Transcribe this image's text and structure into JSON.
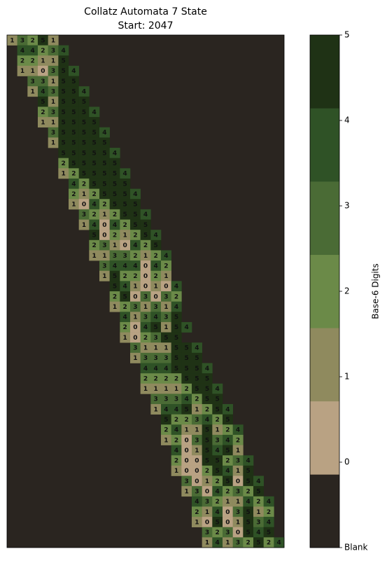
{
  "chart_data": {
    "type": "heatmap",
    "title": "Collatz Automata 7 State",
    "subtitle": "Start: 2047",
    "colors": [
      "#2a2520",
      "#b9a283",
      "#8f8a5e",
      "#6b8a48",
      "#4a6b35",
      "#2f5226",
      "#1f3215"
    ],
    "colorbar": {
      "label": "Base-6 Digits",
      "lim": [
        -1,
        5
      ],
      "ticks": [
        {
          "value": -1,
          "label": "Blank"
        },
        0,
        1,
        2,
        3,
        4,
        5
      ]
    },
    "values": [
      [
        1,
        3,
        2,
        5,
        1,
        null,
        null,
        null,
        null,
        null,
        null,
        null,
        null,
        null,
        null,
        null,
        null,
        null,
        null,
        null,
        null,
        null,
        null,
        null,
        null,
        null,
        null
      ],
      [
        null,
        4,
        4,
        2,
        3,
        4,
        null,
        null,
        null,
        null,
        null,
        null,
        null,
        null,
        null,
        null,
        null,
        null,
        null,
        null,
        null,
        null,
        null,
        null,
        null,
        null,
        null
      ],
      [
        null,
        2,
        2,
        1,
        1,
        5,
        null,
        null,
        null,
        null,
        null,
        null,
        null,
        null,
        null,
        null,
        null,
        null,
        null,
        null,
        null,
        null,
        null,
        null,
        null,
        null,
        null
      ],
      [
        null,
        1,
        1,
        0,
        3,
        5,
        4,
        null,
        null,
        null,
        null,
        null,
        null,
        null,
        null,
        null,
        null,
        null,
        null,
        null,
        null,
        null,
        null,
        null,
        null,
        null,
        null
      ],
      [
        null,
        null,
        3,
        3,
        1,
        5,
        5,
        null,
        null,
        null,
        null,
        null,
        null,
        null,
        null,
        null,
        null,
        null,
        null,
        null,
        null,
        null,
        null,
        null,
        null,
        null,
        null
      ],
      [
        null,
        null,
        1,
        4,
        3,
        5,
        5,
        4,
        null,
        null,
        null,
        null,
        null,
        null,
        null,
        null,
        null,
        null,
        null,
        null,
        null,
        null,
        null,
        null,
        null,
        null,
        null
      ],
      [
        null,
        null,
        null,
        5,
        1,
        5,
        5,
        5,
        null,
        null,
        null,
        null,
        null,
        null,
        null,
        null,
        null,
        null,
        null,
        null,
        null,
        null,
        null,
        null,
        null,
        null,
        null
      ],
      [
        null,
        null,
        null,
        2,
        3,
        5,
        5,
        5,
        4,
        null,
        null,
        null,
        null,
        null,
        null,
        null,
        null,
        null,
        null,
        null,
        null,
        null,
        null,
        null,
        null,
        null,
        null
      ],
      [
        null,
        null,
        null,
        1,
        1,
        5,
        5,
        5,
        5,
        null,
        null,
        null,
        null,
        null,
        null,
        null,
        null,
        null,
        null,
        null,
        null,
        null,
        null,
        null,
        null,
        null,
        null
      ],
      [
        null,
        null,
        null,
        null,
        3,
        5,
        5,
        5,
        5,
        4,
        null,
        null,
        null,
        null,
        null,
        null,
        null,
        null,
        null,
        null,
        null,
        null,
        null,
        null,
        null,
        null,
        null
      ],
      [
        null,
        null,
        null,
        null,
        1,
        5,
        5,
        5,
        5,
        5,
        null,
        null,
        null,
        null,
        null,
        null,
        null,
        null,
        null,
        null,
        null,
        null,
        null,
        null,
        null,
        null,
        null
      ],
      [
        null,
        null,
        null,
        null,
        null,
        5,
        5,
        5,
        5,
        5,
        4,
        null,
        null,
        null,
        null,
        null,
        null,
        null,
        null,
        null,
        null,
        null,
        null,
        null,
        null,
        null,
        null
      ],
      [
        null,
        null,
        null,
        null,
        null,
        2,
        5,
        5,
        5,
        5,
        5,
        null,
        null,
        null,
        null,
        null,
        null,
        null,
        null,
        null,
        null,
        null,
        null,
        null,
        null,
        null,
        null
      ],
      [
        null,
        null,
        null,
        null,
        null,
        1,
        2,
        5,
        5,
        5,
        5,
        4,
        null,
        null,
        null,
        null,
        null,
        null,
        null,
        null,
        null,
        null,
        null,
        null,
        null,
        null,
        null
      ],
      [
        null,
        null,
        null,
        null,
        null,
        null,
        4,
        2,
        5,
        5,
        5,
        5,
        null,
        null,
        null,
        null,
        null,
        null,
        null,
        null,
        null,
        null,
        null,
        null,
        null,
        null,
        null
      ],
      [
        null,
        null,
        null,
        null,
        null,
        null,
        2,
        1,
        2,
        5,
        5,
        5,
        4,
        null,
        null,
        null,
        null,
        null,
        null,
        null,
        null,
        null,
        null,
        null,
        null,
        null,
        null
      ],
      [
        null,
        null,
        null,
        null,
        null,
        null,
        1,
        0,
        4,
        2,
        5,
        5,
        5,
        null,
        null,
        null,
        null,
        null,
        null,
        null,
        null,
        null,
        null,
        null,
        null,
        null,
        null
      ],
      [
        null,
        null,
        null,
        null,
        null,
        null,
        null,
        3,
        2,
        1,
        2,
        5,
        5,
        4,
        null,
        null,
        null,
        null,
        null,
        null,
        null,
        null,
        null,
        null,
        null,
        null,
        null
      ],
      [
        null,
        null,
        null,
        null,
        null,
        null,
        null,
        1,
        4,
        0,
        4,
        2,
        5,
        5,
        null,
        null,
        null,
        null,
        null,
        null,
        null,
        null,
        null,
        null,
        null,
        null,
        null
      ],
      [
        null,
        null,
        null,
        null,
        null,
        null,
        null,
        null,
        5,
        0,
        2,
        1,
        2,
        5,
        4,
        null,
        null,
        null,
        null,
        null,
        null,
        null,
        null,
        null,
        null,
        null,
        null
      ],
      [
        null,
        null,
        null,
        null,
        null,
        null,
        null,
        null,
        2,
        3,
        1,
        0,
        4,
        2,
        5,
        null,
        null,
        null,
        null,
        null,
        null,
        null,
        null,
        null,
        null,
        null,
        null
      ],
      [
        null,
        null,
        null,
        null,
        null,
        null,
        null,
        null,
        1,
        1,
        3,
        3,
        2,
        1,
        2,
        4,
        null,
        null,
        null,
        null,
        null,
        null,
        null,
        null,
        null,
        null,
        null
      ],
      [
        null,
        null,
        null,
        null,
        null,
        null,
        null,
        null,
        null,
        3,
        4,
        4,
        4,
        0,
        4,
        2,
        null,
        null,
        null,
        null,
        null,
        null,
        null,
        null,
        null,
        null,
        null
      ],
      [
        null,
        null,
        null,
        null,
        null,
        null,
        null,
        null,
        null,
        1,
        5,
        2,
        2,
        0,
        2,
        1,
        null,
        null,
        null,
        null,
        null,
        null,
        null,
        null,
        null,
        null,
        null
      ],
      [
        null,
        null,
        null,
        null,
        null,
        null,
        null,
        null,
        null,
        null,
        5,
        4,
        1,
        0,
        1,
        0,
        4,
        null,
        null,
        null,
        null,
        null,
        null,
        null,
        null,
        null,
        null
      ],
      [
        null,
        null,
        null,
        null,
        null,
        null,
        null,
        null,
        null,
        null,
        2,
        5,
        0,
        3,
        0,
        3,
        2,
        null,
        null,
        null,
        null,
        null,
        null,
        null,
        null,
        null,
        null
      ],
      [
        null,
        null,
        null,
        null,
        null,
        null,
        null,
        null,
        null,
        null,
        1,
        2,
        3,
        1,
        3,
        1,
        4,
        null,
        null,
        null,
        null,
        null,
        null,
        null,
        null,
        null,
        null
      ],
      [
        null,
        null,
        null,
        null,
        null,
        null,
        null,
        null,
        null,
        null,
        null,
        4,
        1,
        3,
        4,
        3,
        5,
        null,
        null,
        null,
        null,
        null,
        null,
        null,
        null,
        null,
        null
      ],
      [
        null,
        null,
        null,
        null,
        null,
        null,
        null,
        null,
        null,
        null,
        null,
        2,
        0,
        4,
        5,
        1,
        5,
        4,
        null,
        null,
        null,
        null,
        null,
        null,
        null,
        null,
        null
      ],
      [
        null,
        null,
        null,
        null,
        null,
        null,
        null,
        null,
        null,
        null,
        null,
        1,
        0,
        2,
        3,
        5,
        5,
        null,
        null,
        null,
        null,
        null,
        null,
        null,
        null,
        null,
        null
      ],
      [
        null,
        null,
        null,
        null,
        null,
        null,
        null,
        null,
        null,
        null,
        null,
        null,
        3,
        1,
        1,
        1,
        5,
        5,
        4,
        null,
        null,
        null,
        null,
        null,
        null,
        null,
        null
      ],
      [
        null,
        null,
        null,
        null,
        null,
        null,
        null,
        null,
        null,
        null,
        null,
        null,
        1,
        3,
        3,
        3,
        5,
        5,
        5,
        null,
        null,
        null,
        null,
        null,
        null,
        null,
        null
      ],
      [
        null,
        null,
        null,
        null,
        null,
        null,
        null,
        null,
        null,
        null,
        null,
        null,
        null,
        4,
        4,
        4,
        5,
        5,
        5,
        4,
        null,
        null,
        null,
        null,
        null,
        null,
        null
      ],
      [
        null,
        null,
        null,
        null,
        null,
        null,
        null,
        null,
        null,
        null,
        null,
        null,
        null,
        2,
        2,
        2,
        2,
        5,
        5,
        5,
        null,
        null,
        null,
        null,
        null,
        null,
        null
      ],
      [
        null,
        null,
        null,
        null,
        null,
        null,
        null,
        null,
        null,
        null,
        null,
        null,
        null,
        1,
        1,
        1,
        1,
        2,
        5,
        5,
        4,
        null,
        null,
        null,
        null,
        null,
        null
      ],
      [
        null,
        null,
        null,
        null,
        null,
        null,
        null,
        null,
        null,
        null,
        null,
        null,
        null,
        null,
        3,
        3,
        3,
        4,
        2,
        5,
        5,
        null,
        null,
        null,
        null,
        null,
        null
      ],
      [
        null,
        null,
        null,
        null,
        null,
        null,
        null,
        null,
        null,
        null,
        null,
        null,
        null,
        null,
        1,
        4,
        4,
        5,
        1,
        2,
        5,
        4,
        null,
        null,
        null,
        null,
        null
      ],
      [
        null,
        null,
        null,
        null,
        null,
        null,
        null,
        null,
        null,
        null,
        null,
        null,
        null,
        null,
        null,
        5,
        2,
        2,
        3,
        4,
        2,
        5,
        null,
        null,
        null,
        null,
        null
      ],
      [
        null,
        null,
        null,
        null,
        null,
        null,
        null,
        null,
        null,
        null,
        null,
        null,
        null,
        null,
        null,
        2,
        4,
        1,
        1,
        5,
        1,
        2,
        4,
        null,
        null,
        null,
        null
      ],
      [
        null,
        null,
        null,
        null,
        null,
        null,
        null,
        null,
        null,
        null,
        null,
        null,
        null,
        null,
        null,
        1,
        2,
        0,
        3,
        5,
        3,
        4,
        2,
        null,
        null,
        null,
        null
      ],
      [
        null,
        null,
        null,
        null,
        null,
        null,
        null,
        null,
        null,
        null,
        null,
        null,
        null,
        null,
        null,
        null,
        4,
        0,
        1,
        5,
        4,
        5,
        1,
        null,
        null,
        null,
        null
      ],
      [
        null,
        null,
        null,
        null,
        null,
        null,
        null,
        null,
        null,
        null,
        null,
        null,
        null,
        null,
        null,
        null,
        2,
        0,
        0,
        5,
        5,
        2,
        3,
        4,
        null,
        null,
        null
      ],
      [
        null,
        null,
        null,
        null,
        null,
        null,
        null,
        null,
        null,
        null,
        null,
        null,
        null,
        null,
        null,
        null,
        1,
        0,
        0,
        2,
        5,
        4,
        1,
        5,
        null,
        null,
        null
      ],
      [
        null,
        null,
        null,
        null,
        null,
        null,
        null,
        null,
        null,
        null,
        null,
        null,
        null,
        null,
        null,
        null,
        null,
        3,
        0,
        1,
        2,
        5,
        0,
        5,
        4,
        null,
        null
      ],
      [
        null,
        null,
        null,
        null,
        null,
        null,
        null,
        null,
        null,
        null,
        null,
        null,
        null,
        null,
        null,
        null,
        null,
        1,
        3,
        0,
        4,
        2,
        3,
        2,
        5,
        null,
        null
      ],
      [
        null,
        null,
        null,
        null,
        null,
        null,
        null,
        null,
        null,
        null,
        null,
        null,
        null,
        null,
        null,
        null,
        null,
        null,
        4,
        3,
        2,
        1,
        1,
        4,
        2,
        4,
        null
      ],
      [
        null,
        null,
        null,
        null,
        null,
        null,
        null,
        null,
        null,
        null,
        null,
        null,
        null,
        null,
        null,
        null,
        null,
        null,
        2,
        1,
        4,
        0,
        3,
        5,
        1,
        2,
        null
      ],
      [
        null,
        null,
        null,
        null,
        null,
        null,
        null,
        null,
        null,
        null,
        null,
        null,
        null,
        null,
        null,
        null,
        null,
        null,
        1,
        0,
        5,
        0,
        1,
        5,
        3,
        4,
        null
      ],
      [
        null,
        null,
        null,
        null,
        null,
        null,
        null,
        null,
        null,
        null,
        null,
        null,
        null,
        null,
        null,
        null,
        null,
        null,
        null,
        3,
        2,
        3,
        0,
        5,
        4,
        5,
        null
      ],
      [
        null,
        null,
        null,
        null,
        null,
        null,
        null,
        null,
        null,
        null,
        null,
        null,
        null,
        null,
        null,
        null,
        null,
        null,
        null,
        1,
        4,
        1,
        3,
        2,
        5,
        2,
        4
      ]
    ]
  }
}
